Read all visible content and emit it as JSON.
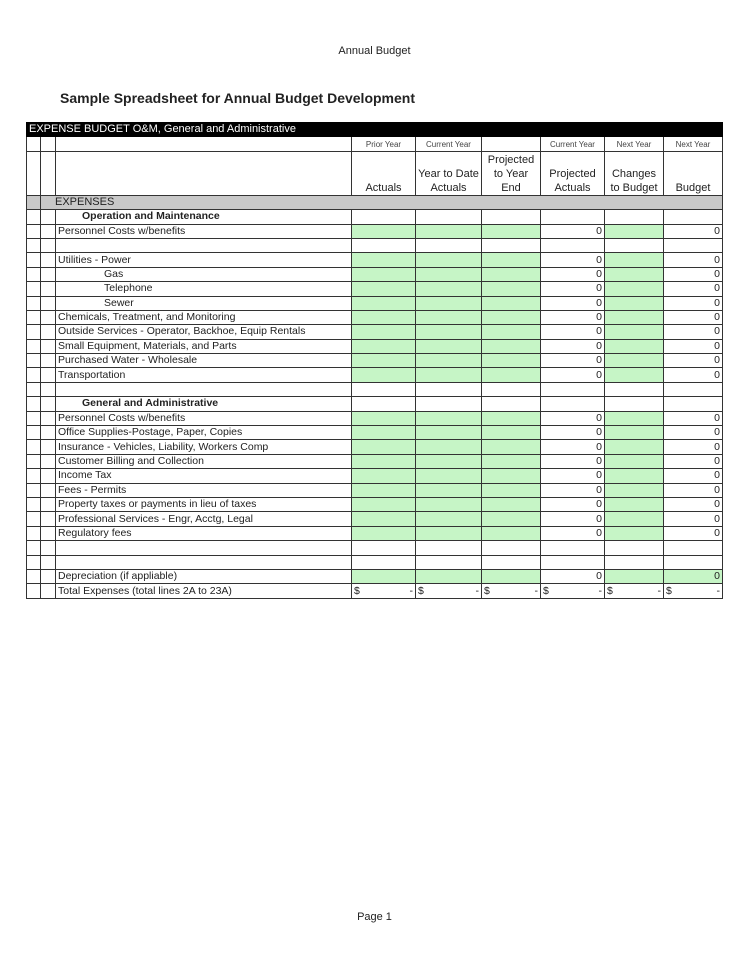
{
  "header": "Annual Budget",
  "title": "Sample Spreadsheet for Annual Budget Development",
  "footer": "Page 1",
  "table": {
    "bar": "EXPENSE BUDGET O&M, General and Administrative",
    "col_top": [
      "Prior Year",
      "Current Year",
      "",
      "Current Year",
      "Next Year",
      "Next Year"
    ],
    "col_main": [
      "Actuals",
      "Year to Date Actuals",
      "Projected to Year End",
      "Projected Actuals",
      "Changes to Budget",
      "Budget"
    ],
    "section": "EXPENSES",
    "rows": [
      {
        "label": "Operation and Maintenance",
        "type": "heading"
      },
      {
        "label": "Personnel Costs w/benefits",
        "type": "data",
        "v4": "0",
        "v6": "0"
      },
      {
        "label": "",
        "type": "blank"
      },
      {
        "label": "Utilities - Power",
        "type": "data",
        "v4": "0",
        "v6": "0"
      },
      {
        "label": "Gas",
        "type": "data",
        "indent": true,
        "v4": "0",
        "v6": "0"
      },
      {
        "label": "Telephone",
        "type": "data",
        "indent": true,
        "v4": "0",
        "v6": "0"
      },
      {
        "label": "Sewer",
        "type": "data",
        "indent": true,
        "v4": "0",
        "v6": "0"
      },
      {
        "label": "Chemicals, Treatment, and Monitoring",
        "type": "data",
        "v4": "0",
        "v6": "0"
      },
      {
        "label": "Outside Services - Operator, Backhoe, Equip Rentals",
        "type": "data",
        "v4": "0",
        "v6": "0"
      },
      {
        "label": "Small Equipment, Materials, and Parts",
        "type": "data",
        "v4": "0",
        "v6": "0"
      },
      {
        "label": "Purchased Water - Wholesale",
        "type": "data",
        "v4": "0",
        "v6": "0"
      },
      {
        "label": "Transportation",
        "type": "data",
        "v4": "0",
        "v6": "0"
      },
      {
        "label": "",
        "type": "blank"
      },
      {
        "label": "General and Administrative",
        "type": "heading"
      },
      {
        "label": "Personnel Costs w/benefits",
        "type": "data",
        "v4": "0",
        "v6": "0"
      },
      {
        "label": "Office Supplies-Postage, Paper, Copies",
        "type": "data",
        "v4": "0",
        "v6": "0"
      },
      {
        "label": "Insurance - Vehicles, Liability, Workers Comp",
        "type": "data",
        "v4": "0",
        "v6": "0"
      },
      {
        "label": "Customer Billing and Collection",
        "type": "data",
        "v4": "0",
        "v6": "0"
      },
      {
        "label": "Income Tax",
        "type": "data",
        "v4": "0",
        "v6": "0"
      },
      {
        "label": "Fees - Permits",
        "type": "data",
        "v4": "0",
        "v6": "0"
      },
      {
        "label": "Property taxes or payments in lieu of taxes",
        "type": "data",
        "v4": "0",
        "v6": "0"
      },
      {
        "label": "Professional Services - Engr, Acctg, Legal",
        "type": "data",
        "v4": "0",
        "v6": "0"
      },
      {
        "label": "Regulatory fees",
        "type": "data",
        "v4": "0",
        "v6": "0"
      },
      {
        "label": "",
        "type": "blank"
      },
      {
        "label": "",
        "type": "blank"
      },
      {
        "label": "Depreciation (if appliable)",
        "type": "dep",
        "v4": "0",
        "v6": "0"
      },
      {
        "label": "Total Expenses (total lines 2A to 23A)",
        "type": "total",
        "cur": "$",
        "dash": "-"
      }
    ]
  },
  "colors": {
    "input_green": "#c6f5c6",
    "section_gray": "#c8c8c8"
  }
}
